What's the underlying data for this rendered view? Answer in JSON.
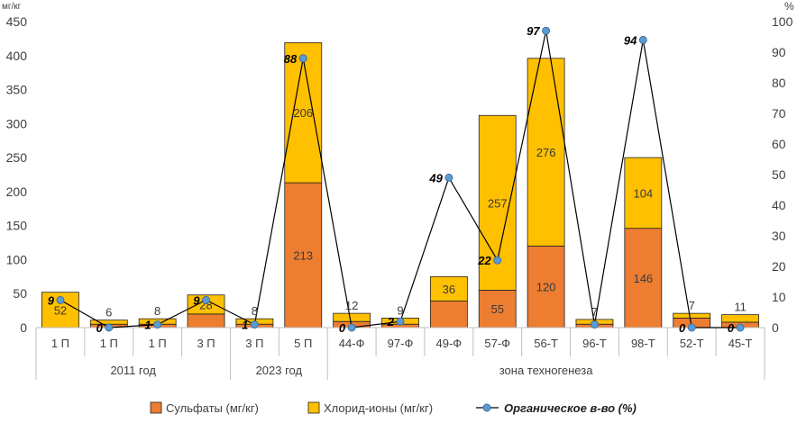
{
  "chart_data": {
    "type": "bar",
    "stacked": true,
    "units_left": "мг/кг",
    "units_right": "%",
    "yticks_left": [
      "0",
      "50",
      "100",
      "150",
      "200",
      "250",
      "300",
      "350",
      "400",
      "450"
    ],
    "yticks_right": [
      "0",
      "10",
      "20",
      "30",
      "40",
      "50",
      "60",
      "70",
      "80",
      "90",
      "100"
    ],
    "ylim_left": [
      0,
      450
    ],
    "ylim_right": [
      0,
      100
    ],
    "categories": [
      "1 П",
      "1 П",
      "1 П",
      "3 П",
      "3 П",
      "5 П",
      "44-Ф",
      "97-Ф",
      "49-Ф",
      "57-Ф",
      "56-Т",
      "96-Т",
      "98-Т",
      "52-Т",
      "45-Т"
    ],
    "groups": [
      {
        "label": "2011 год",
        "start": 0,
        "end": 3
      },
      {
        "label": "2023 год",
        "start": 4,
        "end": 5
      },
      {
        "label": "зона техногенеза",
        "start": 6,
        "end": 14
      }
    ],
    "series": [
      {
        "name": "Сульфаты (мг/кг)",
        "kind": "bar",
        "color": "#ED7D31",
        "values": [
          0,
          5,
          5,
          20,
          5,
          213,
          9,
          5,
          39,
          55,
          120,
          5,
          146,
          14,
          8
        ],
        "labels": [
          "",
          "",
          "",
          "",
          "",
          "213",
          "",
          "",
          "",
          "55",
          "120",
          "",
          "146",
          "",
          ""
        ]
      },
      {
        "name": "Хлорид-ионы  (мг/кг)",
        "kind": "bar",
        "color": "#FFC000",
        "values": [
          52,
          6,
          8,
          28,
          8,
          206,
          12,
          9,
          36,
          257,
          276,
          7,
          104,
          7,
          11
        ],
        "labels": [
          "52",
          "6",
          "8",
          "28",
          "8",
          "206",
          "12",
          "9",
          "36",
          "257",
          "276",
          "7",
          "104",
          "7",
          "11"
        ]
      },
      {
        "name": "Органическое в-во (%)",
        "kind": "line",
        "axis": "right",
        "color": "#000000",
        "marker_color": "#5B9BD5",
        "values": [
          9,
          0,
          1,
          9,
          1,
          88,
          0,
          2,
          49,
          22,
          97,
          1,
          94,
          0,
          0
        ],
        "labels": [
          "9",
          "0",
          "1",
          "9",
          "1",
          "88",
          "0",
          "2",
          "49",
          "22",
          "97",
          "",
          "94",
          "0",
          "0"
        ]
      }
    ],
    "legend_position": "bottom"
  }
}
